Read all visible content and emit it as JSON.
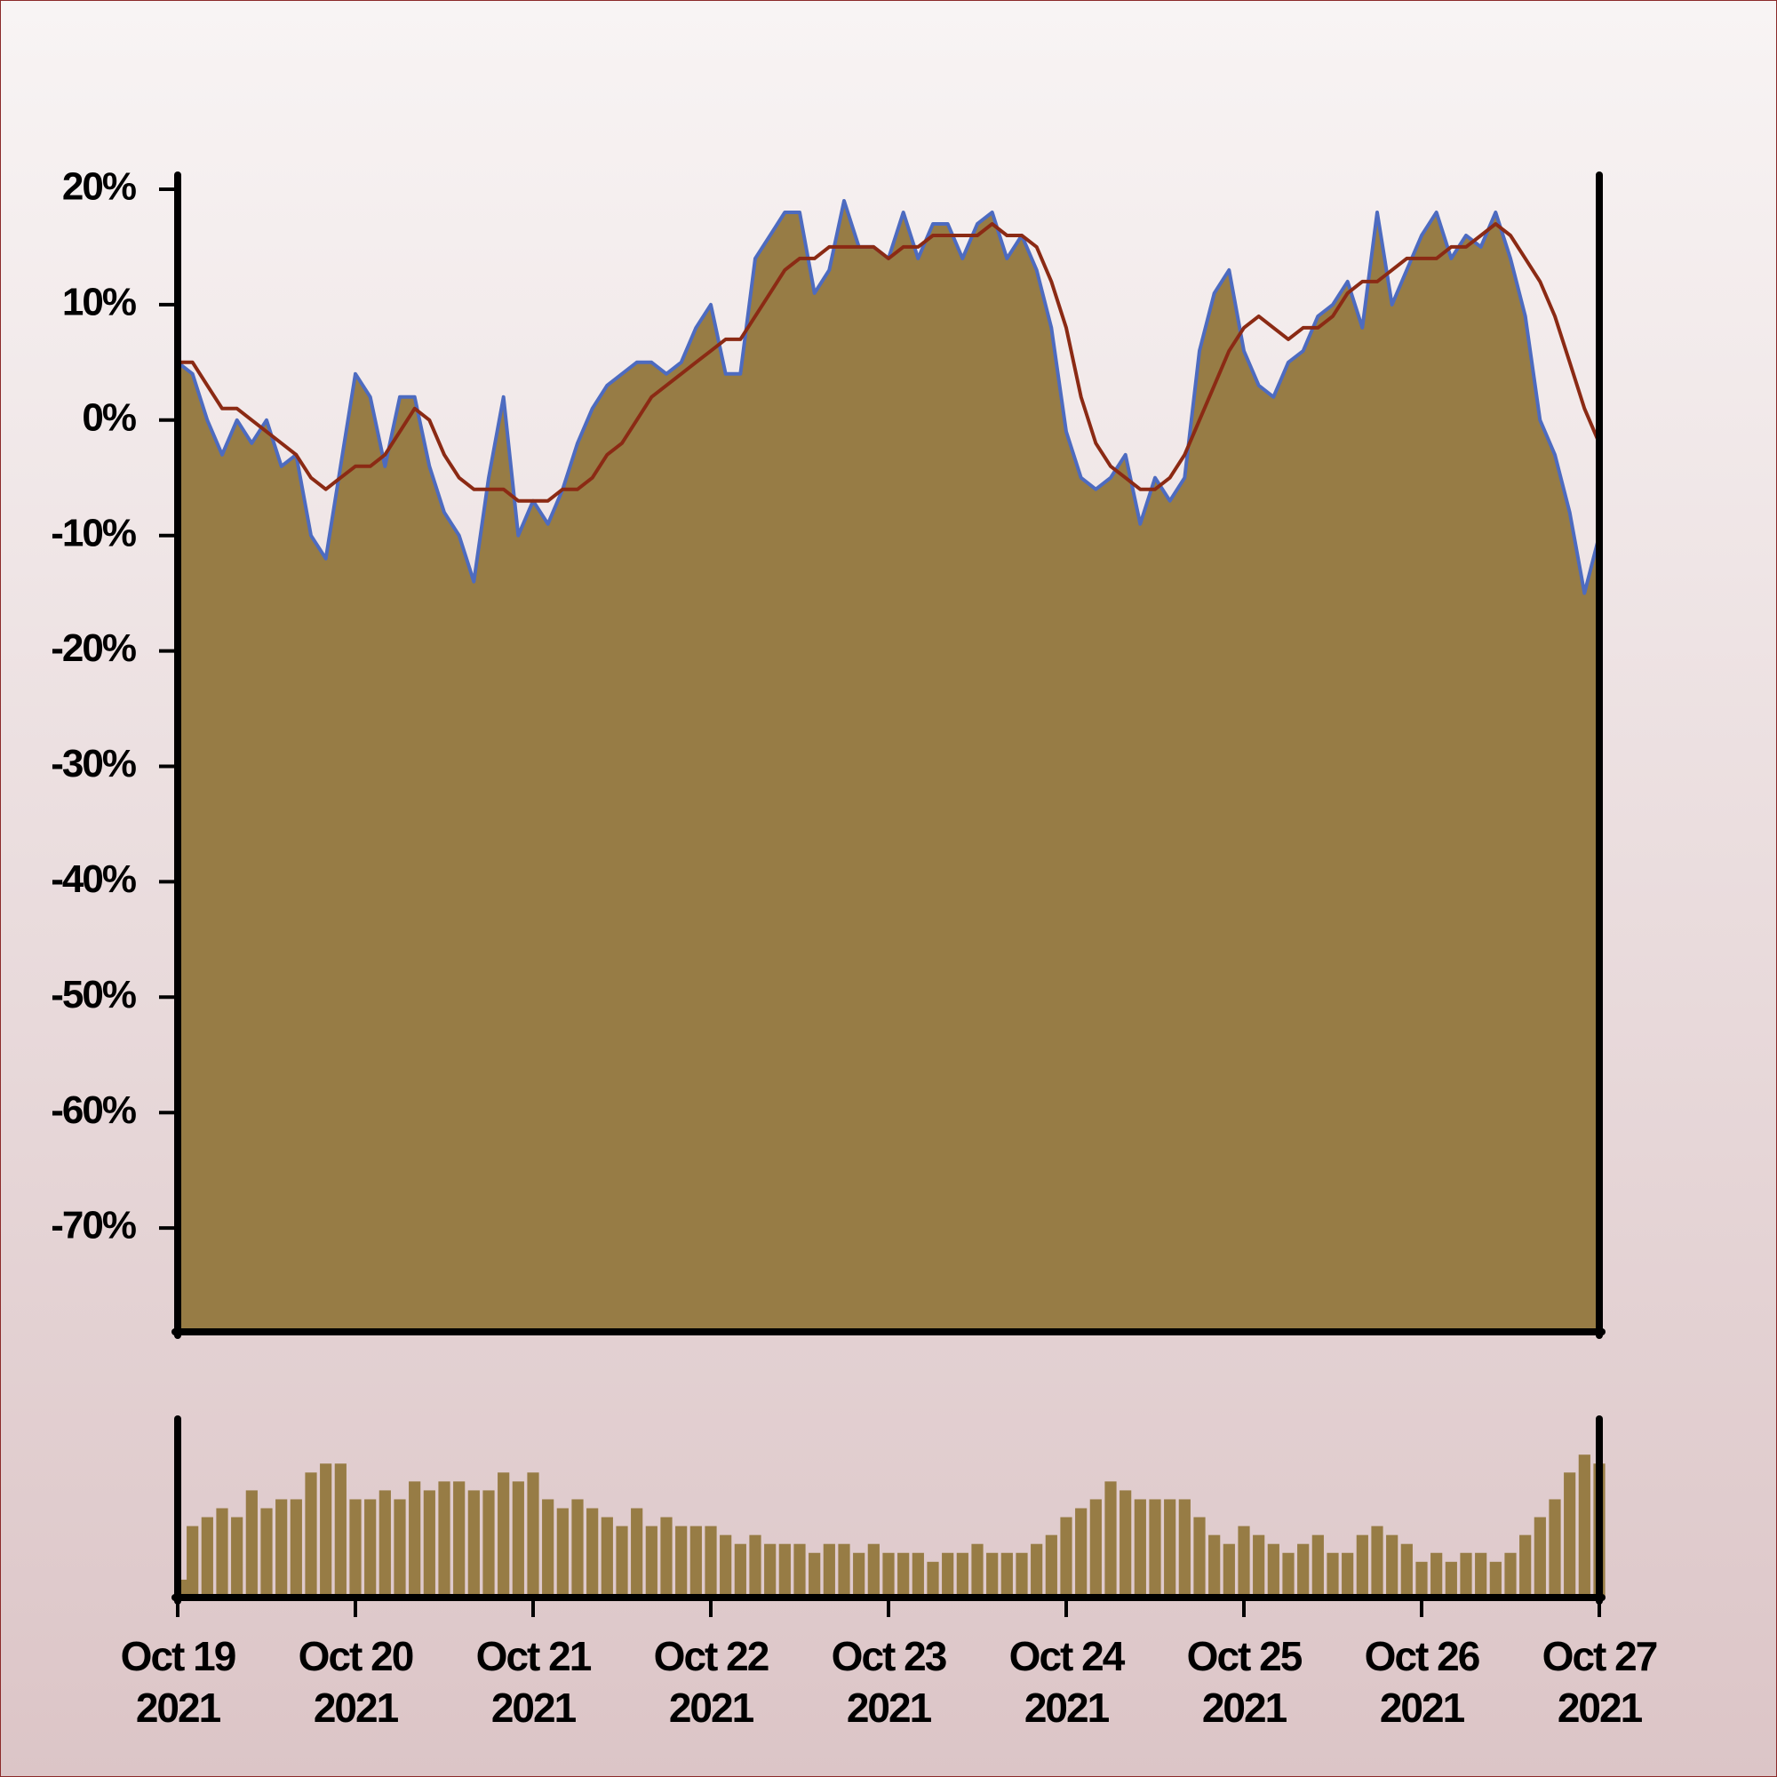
{
  "chart_data": [
    {
      "type": "area",
      "xlim": [
        "2021-10-19",
        "2021-10-27"
      ],
      "ylim": [
        -79,
        21
      ],
      "yticks": [
        {
          "value": 20,
          "label": "20%"
        },
        {
          "value": 10,
          "label": "10%"
        },
        {
          "value": 0,
          "label": "0%"
        },
        {
          "value": -10,
          "label": "-10%"
        },
        {
          "value": -20,
          "label": "-20%"
        },
        {
          "value": -30,
          "label": "-30%"
        },
        {
          "value": -40,
          "label": "-40%"
        },
        {
          "value": -50,
          "label": "-50%"
        },
        {
          "value": -60,
          "label": "-60%"
        },
        {
          "value": -70,
          "label": "-70%"
        }
      ],
      "series": [
        {
          "color": "#4d6bc0",
          "fill": "#977c45",
          "values": [
            5,
            4,
            0,
            -3,
            0,
            -2,
            0,
            -4,
            -3,
            -10,
            -12,
            -4,
            4,
            2,
            -4,
            2,
            2,
            -4,
            -8,
            -10,
            -14,
            -5,
            2,
            -10,
            -7,
            -9,
            -6,
            -2,
            1,
            3,
            4,
            5,
            5,
            4,
            5,
            8,
            10,
            4,
            4,
            14,
            16,
            18,
            18,
            11,
            13,
            19,
            15,
            15,
            14,
            18,
            14,
            17,
            17,
            14,
            17,
            18,
            14,
            16,
            13,
            8,
            -1,
            -5,
            -6,
            -5,
            -3,
            -9,
            -5,
            -7,
            -5,
            6,
            11,
            13,
            6,
            3,
            2,
            5,
            6,
            9,
            10,
            12,
            8,
            18,
            10,
            13,
            16,
            18,
            14,
            16,
            15,
            18,
            14,
            9,
            0,
            -3,
            -8,
            -15,
            -10
          ]
        },
        {
          "color": "#8b2a14",
          "values": [
            5,
            5,
            3,
            1,
            1,
            0,
            -1,
            -2,
            -3,
            -5,
            -6,
            -5,
            -4,
            -4,
            -3,
            -1,
            1,
            0,
            -3,
            -5,
            -6,
            -6,
            -6,
            -7,
            -7,
            -7,
            -6,
            -6,
            -5,
            -3,
            -2,
            0,
            2,
            3,
            4,
            5,
            6,
            7,
            7,
            9,
            11,
            13,
            14,
            14,
            15,
            15,
            15,
            15,
            14,
            15,
            15,
            16,
            16,
            16,
            16,
            17,
            16,
            16,
            15,
            12,
            8,
            2,
            -2,
            -4,
            -5,
            -6,
            -6,
            -5,
            -3,
            0,
            3,
            6,
            8,
            9,
            8,
            7,
            8,
            8,
            9,
            11,
            12,
            12,
            13,
            14,
            14,
            14,
            15,
            15,
            16,
            17,
            16,
            14,
            12,
            9,
            5,
            1,
            -2
          ]
        }
      ]
    },
    {
      "type": "bar",
      "color": "#977c45",
      "xlim": [
        "2021-10-19",
        "2021-10-27"
      ],
      "ylim": [
        0,
        100
      ],
      "xticks": [
        {
          "value": "2021-10-19",
          "label": "Oct 19 2021"
        },
        {
          "value": "2021-10-20",
          "label": "Oct 20 2021"
        },
        {
          "value": "2021-10-21",
          "label": "Oct 21 2021"
        },
        {
          "value": "2021-10-22",
          "label": "Oct 22 2021"
        },
        {
          "value": "2021-10-23",
          "label": "Oct 23 2021"
        },
        {
          "value": "2021-10-24",
          "label": "Oct 24 2021"
        },
        {
          "value": "2021-10-25",
          "label": "Oct 25 2021"
        },
        {
          "value": "2021-10-26",
          "label": "Oct 26 2021"
        },
        {
          "value": "2021-10-27",
          "label": "Oct 27 2021"
        }
      ],
      "values": [
        10,
        40,
        45,
        50,
        45,
        60,
        50,
        55,
        55,
        70,
        75,
        75,
        55,
        55,
        60,
        55,
        65,
        60,
        65,
        65,
        60,
        60,
        70,
        65,
        70,
        55,
        50,
        55,
        50,
        45,
        40,
        50,
        40,
        45,
        40,
        40,
        40,
        35,
        30,
        35,
        30,
        30,
        30,
        25,
        30,
        30,
        25,
        30,
        25,
        25,
        25,
        20,
        25,
        25,
        30,
        25,
        25,
        25,
        30,
        35,
        45,
        50,
        55,
        65,
        60,
        55,
        55,
        55,
        55,
        45,
        35,
        30,
        40,
        35,
        30,
        25,
        30,
        35,
        25,
        25,
        35,
        40,
        35,
        30,
        20,
        25,
        20,
        25,
        25,
        20,
        25,
        35,
        45,
        55,
        70,
        80,
        75
      ]
    }
  ]
}
